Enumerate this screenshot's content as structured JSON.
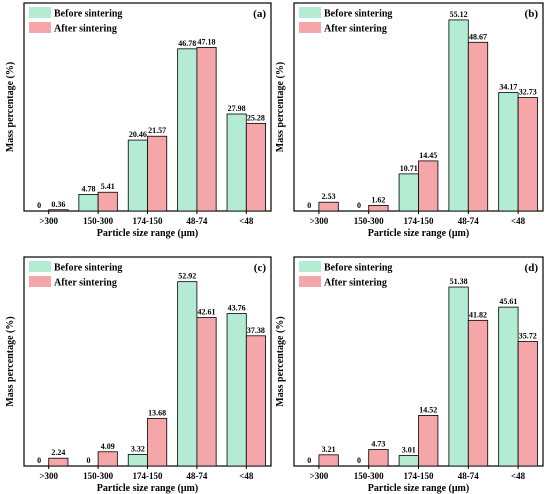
{
  "colors": {
    "before": "#b3ecd3",
    "after": "#f4a6a8",
    "stroke": "#000000"
  },
  "chart_data": [
    {
      "panel": "(a)",
      "type": "bar",
      "categories": [
        ">300",
        "150-300",
        "174-150",
        "48-74",
        "<48"
      ],
      "xlabel": "Particle size range (μm)",
      "ylabel": "Mass percentage (%)",
      "ylim": [
        0,
        60
      ],
      "legend": "top-left",
      "series": [
        {
          "name": "Before sintering",
          "values": [
            0,
            4.78,
            20.46,
            46.78,
            27.98
          ],
          "labels": [
            "0",
            "4.78",
            "20.46",
            "46.78",
            "27.98"
          ]
        },
        {
          "name": "After sintering",
          "values": [
            0.36,
            5.41,
            21.57,
            47.18,
            25.28
          ],
          "labels": [
            "0.36",
            "5.41",
            "21.57",
            "47.18",
            "25.28"
          ]
        }
      ]
    },
    {
      "panel": "(b)",
      "type": "bar",
      "categories": [
        ">300",
        "150-300",
        "174-150",
        "48-74",
        "<48"
      ],
      "xlabel": "Particle size range (μm)",
      "ylabel": "Mass percentage (%)",
      "ylim": [
        0,
        60
      ],
      "legend": "top-left",
      "series": [
        {
          "name": "Before sintering",
          "values": [
            0,
            0,
            10.71,
            55.12,
            34.17
          ],
          "labels": [
            "0",
            "0",
            "10.71",
            "55.12",
            "34.17"
          ]
        },
        {
          "name": "After sintering",
          "values": [
            2.53,
            1.62,
            14.45,
            48.67,
            32.73
          ],
          "labels": [
            "2.53",
            "1.62",
            "14.45",
            "48.67",
            "32.73"
          ]
        }
      ]
    },
    {
      "panel": "(c)",
      "type": "bar",
      "categories": [
        ">300",
        "150-300",
        "174-150",
        "48-74",
        "<48"
      ],
      "xlabel": "Particle size range (μm)",
      "ylabel": "Mass percentage (%)",
      "ylim": [
        0,
        60
      ],
      "legend": "top-left",
      "series": [
        {
          "name": "Before sintering",
          "values": [
            0,
            0,
            3.32,
            52.92,
            43.76
          ],
          "labels": [
            "0",
            "0",
            "3.32",
            "52.92",
            "43.76"
          ]
        },
        {
          "name": "After sintering",
          "values": [
            2.24,
            4.09,
            13.68,
            42.61,
            37.38
          ],
          "labels": [
            "2.24",
            "4.09",
            "13.68",
            "42.61",
            "37.38"
          ]
        }
      ]
    },
    {
      "panel": "(d)",
      "type": "bar",
      "categories": [
        ">300",
        "150-300",
        "174-150",
        "48-74",
        "<48"
      ],
      "xlabel": "Particle size range (μm)",
      "ylabel": "Mass percentage (%)",
      "ylim": [
        0,
        60
      ],
      "legend": "top-left",
      "series": [
        {
          "name": "Before sintering",
          "values": [
            0,
            0,
            3.01,
            51.38,
            45.61
          ],
          "labels": [
            "0",
            "0",
            "3.01",
            "51.38",
            "45.61"
          ]
        },
        {
          "name": "After sintering",
          "values": [
            3.21,
            4.73,
            14.52,
            41.82,
            35.72
          ],
          "labels": [
            "3.21",
            "4.73",
            "14.52",
            "41.82",
            "35.72"
          ]
        }
      ]
    }
  ]
}
